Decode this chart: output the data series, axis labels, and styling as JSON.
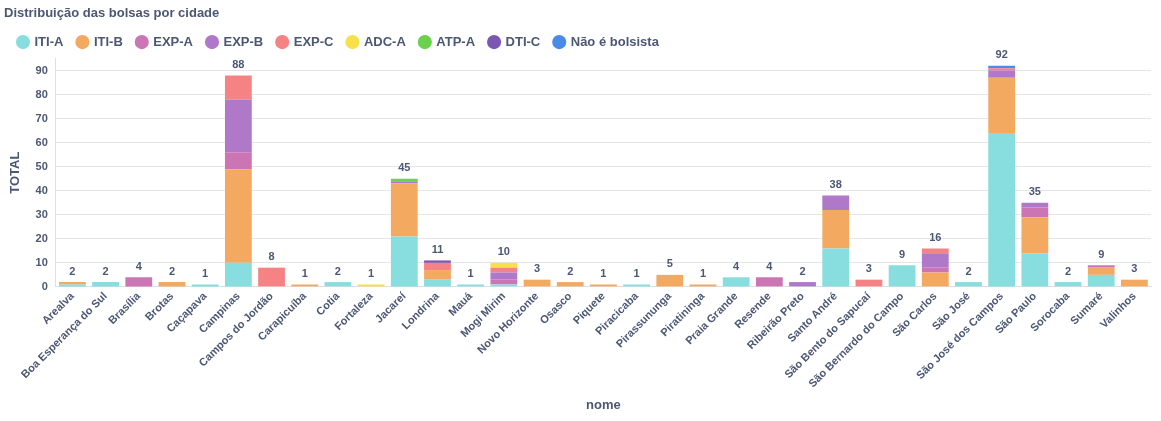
{
  "chart_data": {
    "type": "bar",
    "stacked": true,
    "title": "Distribuição das bolsas por cidade",
    "xlabel": "nome",
    "ylabel": "TOTAL",
    "categories": [
      "Arealva",
      "Boa Esperança do Sul",
      "Brasília",
      "Brotas",
      "Caçapava",
      "Campinas",
      "Campos do Jordão",
      "Carapicuíba",
      "Cotia",
      "Fortaleza",
      "Jacareí",
      "Londrina",
      "Mauá",
      "Mogi Mirim",
      "Novo Horizonte",
      "Osasco",
      "Piquete",
      "Piracicaba",
      "Pirassununga",
      "Piratininga",
      "Praia Grande",
      "Resende",
      "Ribeirão Preto",
      "Santo André",
      "São Bento do Sapucaí",
      "São Bernardo do Campo",
      "São Carlos",
      "São José",
      "São José dos Campos",
      "São Paulo",
      "Sorocaba",
      "Sumaré",
      "Valinhos"
    ],
    "series": [
      {
        "name": "ITI-A",
        "color": "#88dede",
        "values": [
          1,
          2,
          null,
          null,
          1,
          10,
          null,
          null,
          2,
          null,
          21,
          3,
          1,
          1,
          null,
          null,
          null,
          1,
          null,
          null,
          4,
          null,
          null,
          16,
          null,
          9,
          null,
          2,
          64,
          14,
          2,
          5,
          null
        ]
      },
      {
        "name": "ITI-B",
        "color": "#f4a961",
        "values": [
          1,
          null,
          null,
          2,
          null,
          39,
          null,
          1,
          null,
          null,
          22,
          4,
          null,
          null,
          3,
          2,
          1,
          null,
          5,
          1,
          null,
          null,
          null,
          16,
          null,
          null,
          6,
          null,
          23,
          15,
          null,
          3,
          3
        ]
      },
      {
        "name": "EXP-A",
        "color": "#cc75b4",
        "values": [
          null,
          null,
          4,
          null,
          null,
          7,
          null,
          null,
          null,
          null,
          null,
          null,
          null,
          2,
          null,
          null,
          null,
          null,
          null,
          null,
          null,
          4,
          null,
          null,
          null,
          null,
          2,
          null,
          null,
          4,
          null,
          1,
          null
        ]
      },
      {
        "name": "EXP-B",
        "color": "#b078c9",
        "values": [
          null,
          null,
          null,
          null,
          null,
          22,
          null,
          null,
          null,
          null,
          1,
          null,
          null,
          3,
          null,
          null,
          null,
          null,
          null,
          null,
          null,
          null,
          2,
          6,
          null,
          null,
          6,
          null,
          3,
          2,
          null,
          null,
          null
        ]
      },
      {
        "name": "EXP-C",
        "color": "#f68383",
        "values": [
          null,
          null,
          null,
          null,
          null,
          10,
          8,
          null,
          null,
          null,
          null,
          3,
          null,
          2,
          null,
          null,
          null,
          null,
          null,
          null,
          null,
          null,
          null,
          null,
          3,
          null,
          2,
          null,
          1,
          null,
          null,
          null,
          null
        ]
      },
      {
        "name": "ADC-A",
        "color": "#f8e04b",
        "values": [
          null,
          null,
          null,
          null,
          null,
          null,
          null,
          null,
          null,
          1,
          null,
          null,
          null,
          2,
          null,
          null,
          null,
          null,
          null,
          null,
          null,
          null,
          null,
          null,
          null,
          null,
          null,
          null,
          null,
          null,
          null,
          null,
          null
        ]
      },
      {
        "name": "ATP-A",
        "color": "#6bd04b",
        "values": [
          null,
          null,
          null,
          null,
          null,
          null,
          null,
          null,
          null,
          null,
          1,
          null,
          null,
          null,
          null,
          null,
          null,
          null,
          null,
          null,
          null,
          null,
          null,
          null,
          null,
          null,
          null,
          null,
          null,
          null,
          null,
          null,
          null
        ]
      },
      {
        "name": "DTI-C",
        "color": "#7957b2",
        "values": [
          null,
          null,
          null,
          null,
          null,
          null,
          null,
          null,
          null,
          null,
          null,
          1,
          null,
          null,
          null,
          null,
          null,
          null,
          null,
          null,
          null,
          null,
          null,
          null,
          null,
          null,
          null,
          null,
          null,
          null,
          null,
          null,
          null
        ]
      },
      {
        "name": "Não é bolsista",
        "color": "#4a8ae8",
        "values": [
          null,
          null,
          null,
          null,
          null,
          null,
          null,
          null,
          null,
          null,
          null,
          null,
          null,
          null,
          null,
          null,
          null,
          null,
          null,
          null,
          null,
          null,
          null,
          null,
          null,
          null,
          null,
          null,
          1,
          null,
          null,
          null,
          null
        ]
      }
    ],
    "totals": [
      "2",
      "2",
      "4",
      "2",
      "1",
      "88",
      "8",
      "1",
      "2",
      "1",
      "45",
      "11",
      "1",
      "10",
      "3",
      "2",
      "1",
      "1",
      "5",
      "1",
      "4",
      "4",
      "2",
      "38",
      "3",
      "9",
      "16",
      "2",
      "92",
      "35",
      "2",
      "9",
      "3"
    ],
    "ylim": [
      0,
      95
    ],
    "yticks": [
      0,
      10,
      20,
      30,
      40,
      50,
      60,
      70,
      80,
      90
    ],
    "grid": "y",
    "legend": "top left"
  }
}
